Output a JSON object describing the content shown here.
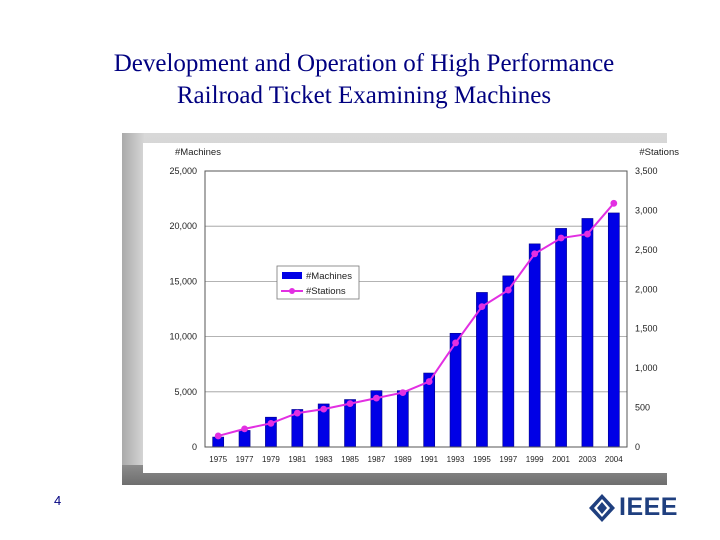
{
  "slide": {
    "title_line1": "Development and Operation of High Performance",
    "title_line2": "Railroad Ticket Examining Machines",
    "page_number": "4",
    "logo_text": "IEEE"
  },
  "colors": {
    "title": "#000080",
    "bars": "#0000e6",
    "line": "#e22fe2",
    "grid": "#9a9a9a",
    "logo": "#1f3f7f"
  },
  "chart_data": {
    "type": "bar",
    "categories": [
      "1975",
      "1977",
      "1979",
      "1981",
      "1983",
      "1985",
      "1987",
      "1989",
      "1991",
      "1993",
      "1995",
      "1997",
      "1999",
      "2001",
      "2003",
      "2004"
    ],
    "series": [
      {
        "name": "#Machines",
        "type": "bar",
        "axis": "left",
        "values": [
          900,
          1500,
          2700,
          3400,
          3900,
          4300,
          5100,
          5100,
          6700,
          10300,
          14000,
          15500,
          18400,
          19800,
          20700,
          21200
        ]
      },
      {
        "name": "#Stations",
        "type": "line",
        "axis": "right",
        "values": [
          140,
          230,
          300,
          430,
          480,
          550,
          620,
          690,
          830,
          1320,
          1780,
          1990,
          2450,
          2650,
          2700,
          3090
        ]
      }
    ],
    "ylabel_left": "#Machines",
    "ylabel_right": "#Stations",
    "ylim_left": [
      0,
      25000
    ],
    "ylim_right": [
      0,
      3500
    ],
    "yticks_left": [
      "0",
      "5,000",
      "10,000",
      "15,000",
      "20,000",
      "25,000"
    ],
    "yticks_right": [
      "0",
      "500",
      "1,000",
      "1,500",
      "2,000",
      "2,500",
      "3,000",
      "3,500"
    ],
    "grid": true,
    "legend": "center-left"
  }
}
